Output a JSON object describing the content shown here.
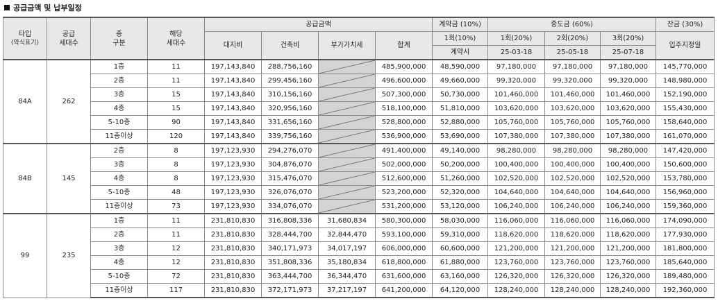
{
  "title": "공급금액 및 납부일정",
  "header": {
    "type": "타입",
    "type_sub": "(약식표기)",
    "supply_units": "공급\n세대수",
    "floor": "층\n구분",
    "units": "해당\n세대수",
    "supply_amount": "공급금액",
    "land": "대지비",
    "building": "건축비",
    "vat": "부가가치세",
    "total": "합계",
    "deposit": "계약금 (10%)",
    "deposit_1": "1회(10%)",
    "deposit_1_when": "계약시",
    "middle": "중도금 (60%)",
    "middle_1": "1회(20%)",
    "middle_1_date": "25-03-18",
    "middle_2": "2회(20%)",
    "middle_2_date": "25-05-18",
    "middle_3": "3회(20%)",
    "middle_3_date": "25-07-18",
    "balance": "잔금 (30%)",
    "balance_when": "입주지정일"
  },
  "groups": [
    {
      "type": "84A",
      "supply_units": "262",
      "rows": [
        {
          "floor": "1층",
          "units": "11",
          "land": "197,143,840",
          "building": "288,756,160",
          "vat": "",
          "total": "485,900,000",
          "dep": "48,590,000",
          "m1": "97,180,000",
          "m2": "97,180,000",
          "m3": "97,180,000",
          "bal": "145,770,000"
        },
        {
          "floor": "2층",
          "units": "11",
          "land": "197,143,840",
          "building": "299,456,160",
          "vat": "",
          "total": "496,600,000",
          "dep": "49,660,000",
          "m1": "99,320,000",
          "m2": "99,320,000",
          "m3": "99,320,000",
          "bal": "148,980,000"
        },
        {
          "floor": "3층",
          "units": "15",
          "land": "197,143,840",
          "building": "310,156,160",
          "vat": "",
          "total": "507,300,000",
          "dep": "50,730,000",
          "m1": "101,460,000",
          "m2": "101,460,000",
          "m3": "101,460,000",
          "bal": "152,190,000"
        },
        {
          "floor": "4층",
          "units": "15",
          "land": "197,143,840",
          "building": "320,956,160",
          "vat": "",
          "total": "518,100,000",
          "dep": "51,810,000",
          "m1": "103,620,000",
          "m2": "103,620,000",
          "m3": "103,620,000",
          "bal": "155,430,000"
        },
        {
          "floor": "5-10층",
          "units": "90",
          "land": "197,143,840",
          "building": "331,656,160",
          "vat": "",
          "total": "528,800,000",
          "dep": "52,880,000",
          "m1": "105,760,000",
          "m2": "105,760,000",
          "m3": "105,760,000",
          "bal": "158,640,000"
        },
        {
          "floor": "11층이상",
          "units": "120",
          "land": "197,143,840",
          "building": "339,756,160",
          "vat": "",
          "total": "536,900,000",
          "dep": "53,690,000",
          "m1": "107,380,000",
          "m2": "107,380,000",
          "m3": "107,380,000",
          "bal": "161,070,000"
        }
      ]
    },
    {
      "type": "84B",
      "supply_units": "145",
      "rows": [
        {
          "floor": "2층",
          "units": "8",
          "land": "197,123,930",
          "building": "294,276,070",
          "vat": "",
          "total": "491,400,000",
          "dep": "49,140,000",
          "m1": "98,280,000",
          "m2": "98,280,000",
          "m3": "98,280,000",
          "bal": "147,420,000"
        },
        {
          "floor": "3층",
          "units": "8",
          "land": "197,123,930",
          "building": "304,876,070",
          "vat": "",
          "total": "502,000,000",
          "dep": "50,200,000",
          "m1": "100,400,000",
          "m2": "100,400,000",
          "m3": "100,400,000",
          "bal": "150,600,000"
        },
        {
          "floor": "4층",
          "units": "8",
          "land": "197,123,930",
          "building": "315,476,070",
          "vat": "",
          "total": "512,600,000",
          "dep": "51,260,000",
          "m1": "102,520,000",
          "m2": "102,520,000",
          "m3": "102,520,000",
          "bal": "153,780,000"
        },
        {
          "floor": "5-10층",
          "units": "48",
          "land": "197,123,930",
          "building": "326,076,070",
          "vat": "",
          "total": "523,200,000",
          "dep": "52,320,000",
          "m1": "104,640,000",
          "m2": "104,640,000",
          "m3": "104,640,000",
          "bal": "156,960,000"
        },
        {
          "floor": "11층이상",
          "units": "73",
          "land": "197,123,930",
          "building": "334,076,070",
          "vat": "",
          "total": "531,200,000",
          "dep": "53,120,000",
          "m1": "106,240,000",
          "m2": "106,240,000",
          "m3": "106,240,000",
          "bal": "159,360,000"
        }
      ]
    },
    {
      "type": "99",
      "supply_units": "235",
      "rows": [
        {
          "floor": "1층",
          "units": "11",
          "land": "231,810,830",
          "building": "316,808,336",
          "vat": "31,680,834",
          "total": "580,300,000",
          "dep": "58,030,000",
          "m1": "116,060,000",
          "m2": "116,060,000",
          "m3": "116,060,000",
          "bal": "174,090,000"
        },
        {
          "floor": "2층",
          "units": "11",
          "land": "231,810,830",
          "building": "328,444,700",
          "vat": "32,844,470",
          "total": "593,100,000",
          "dep": "59,310,000",
          "m1": "118,620,000",
          "m2": "118,620,000",
          "m3": "118,620,000",
          "bal": "177,930,000"
        },
        {
          "floor": "3층",
          "units": "12",
          "land": "231,810,830",
          "building": "340,171,973",
          "vat": "34,017,197",
          "total": "606,000,000",
          "dep": "60,600,000",
          "m1": "121,200,000",
          "m2": "121,200,000",
          "m3": "121,200,000",
          "bal": "181,800,000"
        },
        {
          "floor": "4층",
          "units": "12",
          "land": "231,810,830",
          "building": "351,808,336",
          "vat": "35,180,834",
          "total": "618,800,000",
          "dep": "61,880,000",
          "m1": "123,760,000",
          "m2": "123,760,000",
          "m3": "123,760,000",
          "bal": "185,640,000"
        },
        {
          "floor": "5-10층",
          "units": "72",
          "land": "231,810,830",
          "building": "363,444,700",
          "vat": "36,344,470",
          "total": "631,600,000",
          "dep": "63,160,000",
          "m1": "126,320,000",
          "m2": "126,320,000",
          "m3": "126,320,000",
          "bal": "189,480,000"
        },
        {
          "floor": "11층이상",
          "units": "117",
          "land": "231,810,830",
          "building": "372,171,973",
          "vat": "37,217,197",
          "total": "641,200,000",
          "dep": "64,120,000",
          "m1": "128,240,000",
          "m2": "128,240,000",
          "m3": "128,240,000",
          "bal": "192,360,000"
        }
      ]
    }
  ]
}
